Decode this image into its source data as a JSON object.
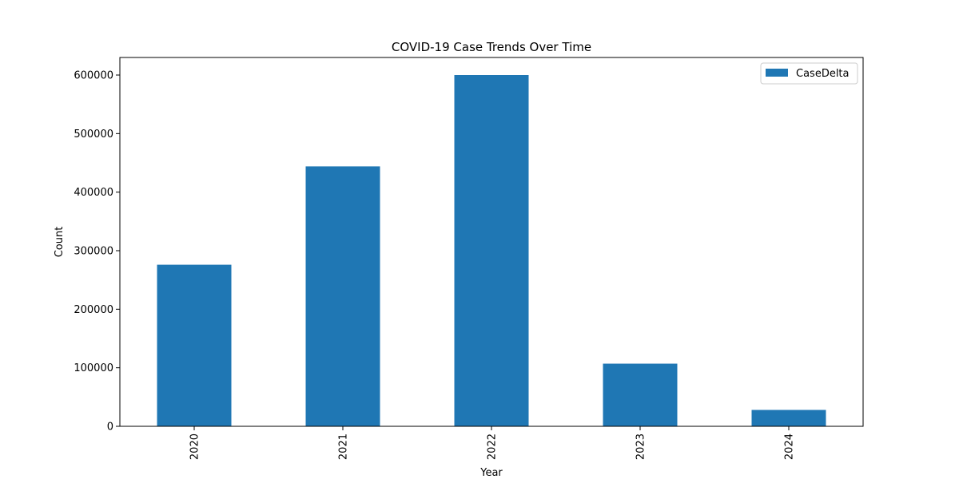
{
  "chart_data": {
    "type": "bar",
    "title": "COVID-19 Case Trends Over Time",
    "xlabel": "Year",
    "ylabel": "Count",
    "categories": [
      "2020",
      "2021",
      "2022",
      "2023",
      "2024"
    ],
    "series": [
      {
        "name": "CaseDelta",
        "values": [
          276000,
          444000,
          600000,
          107000,
          28000
        ],
        "color": "#1f77b4"
      }
    ],
    "ylim": [
      0,
      630000
    ],
    "yticks": [
      0,
      100000,
      200000,
      300000,
      400000,
      500000,
      600000
    ],
    "ytick_labels": [
      "0",
      "100000",
      "200000",
      "300000",
      "400000",
      "500000",
      "600000"
    ],
    "xtick_rotation": "vertical",
    "grid": false,
    "legend_position": "upper right"
  }
}
